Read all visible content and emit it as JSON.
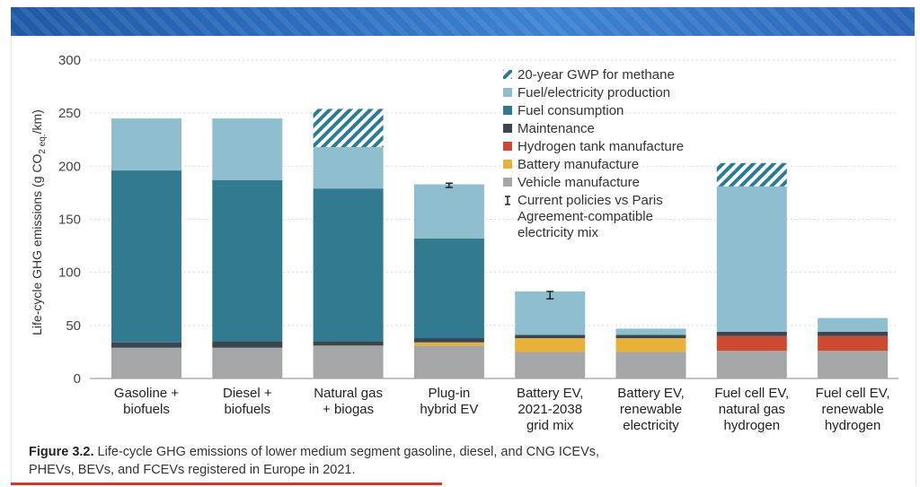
{
  "colors": {
    "gwp": "#2a7b95",
    "fuel_production": "#8fbfcf",
    "fuel_consumption": "#317a90",
    "maintenance": "#3b4650",
    "hydrogen_tank": "#cc4a32",
    "battery": "#e8b13c",
    "vehicle": "#a4a6a8"
  },
  "chart_data": {
    "type": "bar",
    "stacked": true,
    "ylabel": "Life-cycle GHG emissions (g CO2 eq./km)",
    "ylim": [
      0,
      300
    ],
    "yticks": [
      0,
      50,
      100,
      150,
      200,
      250,
      300
    ],
    "categories": [
      [
        "Gasoline +",
        "biofuels"
      ],
      [
        "Diesel +",
        "biofuels"
      ],
      [
        "Natural gas",
        "+ biogas"
      ],
      [
        "Plug-in",
        "hybrid EV"
      ],
      [
        "Battery EV,",
        "2021-2038",
        "grid mix"
      ],
      [
        "Battery EV,",
        "renewable",
        "electricity"
      ],
      [
        "Fuel cell EV,",
        "natural gas",
        "hydrogen"
      ],
      [
        "Fuel cell EV,",
        "renewable",
        "hydrogen"
      ]
    ],
    "series": [
      {
        "key": "vehicle",
        "name": "Vehicle manufacture",
        "values": [
          29,
          29,
          31,
          31,
          25,
          25,
          26,
          26
        ]
      },
      {
        "key": "battery",
        "name": "Battery manufacture",
        "values": [
          0,
          0,
          0,
          3,
          13,
          13,
          0,
          0
        ]
      },
      {
        "key": "hydrogen_tank",
        "name": "Hydrogen tank manufacture",
        "values": [
          0,
          0,
          0,
          0,
          0,
          0,
          14,
          14
        ]
      },
      {
        "key": "maintenance",
        "name": "Maintenance",
        "values": [
          5,
          6,
          4,
          4,
          3,
          3,
          4,
          4
        ]
      },
      {
        "key": "fuel_consumption",
        "name": "Fuel consumption",
        "values": [
          162,
          152,
          144,
          94,
          0,
          0,
          0,
          0
        ]
      },
      {
        "key": "fuel_production",
        "name": "Fuel/electricity production",
        "values": [
          49,
          58,
          39,
          51,
          41,
          6,
          137,
          13
        ]
      },
      {
        "key": "gwp",
        "name": "20-year GWP for methane",
        "values": [
          0,
          0,
          36,
          0,
          0,
          0,
          22,
          0
        ]
      }
    ],
    "error_bars": [
      {
        "category_index": 3,
        "low": 180,
        "high": 184
      },
      {
        "category_index": 4,
        "low": 75,
        "high": 82
      }
    ],
    "legend": [
      {
        "key": "gwp",
        "label": "20-year GWP for methane",
        "style": "hatch"
      },
      {
        "key": "fuel_production",
        "label": "Fuel/electricity production",
        "style": "square"
      },
      {
        "key": "fuel_consumption",
        "label": "Fuel consumption",
        "style": "square"
      },
      {
        "key": "maintenance",
        "label": "Maintenance",
        "style": "square"
      },
      {
        "key": "hydrogen_tank",
        "label": "Hydrogen tank manufacture",
        "style": "square"
      },
      {
        "key": "battery",
        "label": "Battery manufacture",
        "style": "square"
      },
      {
        "key": "vehicle",
        "label": "Vehicle manufacture",
        "style": "square"
      },
      {
        "key": "error",
        "label": [
          "Current policies vs Paris",
          "Agreement-compatible",
          "electricity mix"
        ],
        "style": "errorbar"
      }
    ],
    "legend_position": "top-right"
  },
  "caption": {
    "label": "Figure 3.2.",
    "text_line1": " Life-cycle GHG emissions of lower medium segment gasoline, diesel, and CNG ICEVs,",
    "text_line2": "PHEVs, BEVs, and FCEVs registered in Europe in 2021."
  }
}
